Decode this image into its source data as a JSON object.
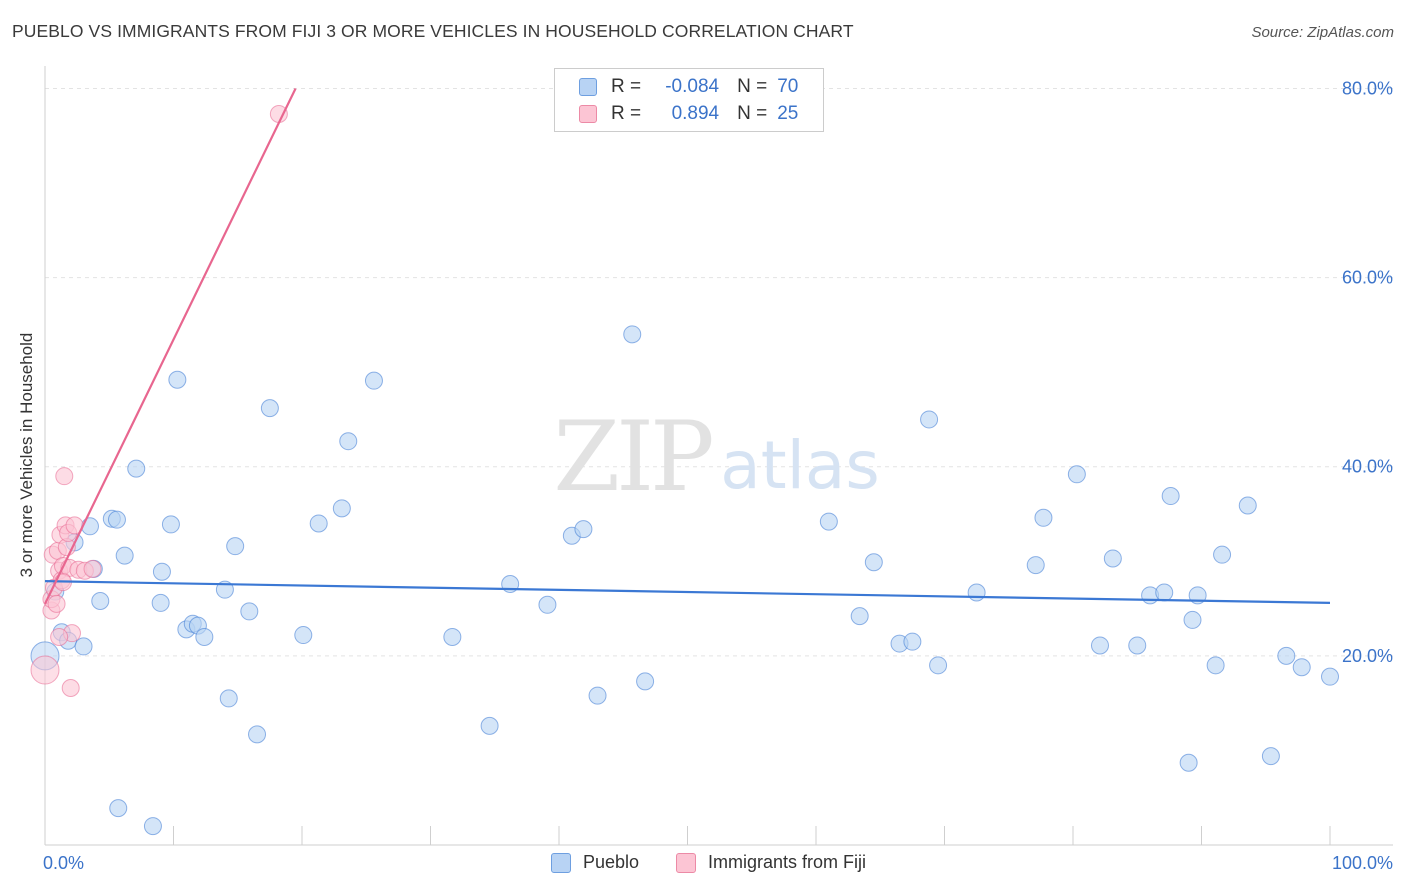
{
  "title": "PUEBLO VS IMMIGRANTS FROM FIJI 3 OR MORE VEHICLES IN HOUSEHOLD CORRELATION CHART",
  "source": "Source: ZipAtlas.com",
  "watermark": {
    "zip": "ZIP",
    "atlas": "atlas"
  },
  "legend": {
    "r_label": "R =",
    "n_label": "N =",
    "rows": [
      {
        "name": "Pueblo",
        "r": "-0.084",
        "n": "70",
        "fill": "#b8d3f4",
        "stroke": "#6e9fe0"
      },
      {
        "name": "Immigrants from Fiji",
        "r": "0.894",
        "n": "25",
        "fill": "#fcc5d4",
        "stroke": "#ec8aa6"
      }
    ]
  },
  "chart_data": {
    "type": "scatter",
    "title": "PUEBLO VS IMMIGRANTS FROM FIJI 3 OR MORE VEHICLES IN HOUSEHOLD CORRELATION CHART",
    "xlabel": "",
    "ylabel": "3 or more Vehicles in Household",
    "xlim": [
      0,
      100
    ],
    "ylim": [
      0,
      81
    ],
    "x_tick_labels": [
      "0.0%",
      "100.0%"
    ],
    "y_ticks": [
      20,
      40,
      60,
      80
    ],
    "y_tick_labels": [
      "20.0%",
      "40.0%",
      "60.0%",
      "80.0%"
    ],
    "grid": true,
    "series": [
      {
        "name": "Pueblo",
        "color": "#3b78d4",
        "fill": "#b8d3f4",
        "trend": {
          "x": [
            0,
            100
          ],
          "y": [
            27.9,
            25.6
          ]
        },
        "points": [
          [
            0.0,
            20.0
          ],
          [
            0.8,
            26.8
          ],
          [
            1.3,
            22.5
          ],
          [
            1.8,
            21.6
          ],
          [
            2.3,
            32.0
          ],
          [
            3.0,
            21.0
          ],
          [
            3.5,
            33.7
          ],
          [
            3.8,
            29.2
          ],
          [
            4.3,
            25.8
          ],
          [
            5.2,
            34.5
          ],
          [
            5.6,
            34.4
          ],
          [
            6.2,
            30.6
          ],
          [
            7.1,
            39.8
          ],
          [
            5.7,
            3.9
          ],
          [
            8.4,
            2.0
          ],
          [
            9.0,
            25.6
          ],
          [
            9.1,
            28.9
          ],
          [
            9.8,
            33.9
          ],
          [
            10.3,
            49.2
          ],
          [
            11.0,
            22.8
          ],
          [
            11.5,
            23.4
          ],
          [
            11.9,
            23.2
          ],
          [
            12.4,
            22.0
          ],
          [
            14.0,
            27.0
          ],
          [
            14.3,
            15.5
          ],
          [
            14.8,
            31.6
          ],
          [
            15.9,
            24.7
          ],
          [
            16.5,
            11.7
          ],
          [
            17.5,
            46.2
          ],
          [
            20.1,
            22.2
          ],
          [
            21.3,
            34.0
          ],
          [
            23.1,
            35.6
          ],
          [
            23.6,
            42.7
          ],
          [
            25.6,
            49.1
          ],
          [
            31.7,
            22.0
          ],
          [
            34.6,
            12.6
          ],
          [
            36.2,
            27.6
          ],
          [
            39.1,
            25.4
          ],
          [
            41.0,
            32.7
          ],
          [
            41.9,
            33.4
          ],
          [
            43.0,
            15.8
          ],
          [
            45.7,
            54.0
          ],
          [
            46.7,
            17.3
          ],
          [
            61.0,
            34.2
          ],
          [
            64.5,
            29.9
          ],
          [
            63.4,
            24.2
          ],
          [
            66.5,
            21.3
          ],
          [
            67.5,
            21.5
          ],
          [
            68.8,
            45.0
          ],
          [
            69.5,
            19.0
          ],
          [
            72.5,
            26.7
          ],
          [
            77.1,
            29.6
          ],
          [
            77.7,
            34.6
          ],
          [
            80.3,
            39.2
          ],
          [
            82.1,
            21.1
          ],
          [
            83.1,
            30.3
          ],
          [
            85.0,
            21.1
          ],
          [
            86.0,
            26.4
          ],
          [
            87.1,
            26.7
          ],
          [
            87.6,
            36.9
          ],
          [
            89.0,
            8.7
          ],
          [
            89.3,
            23.8
          ],
          [
            89.7,
            26.4
          ],
          [
            91.1,
            19.0
          ],
          [
            91.6,
            30.7
          ],
          [
            93.6,
            35.9
          ],
          [
            95.4,
            9.4
          ],
          [
            96.6,
            20.0
          ],
          [
            97.8,
            18.8
          ],
          [
            100.0,
            17.8
          ]
        ]
      },
      {
        "name": "Immigrants from Fiji",
        "color": "#e8668f",
        "fill": "#fcc5d4",
        "trend": {
          "x": [
            0,
            19.5
          ],
          "y": [
            25.5,
            80.0
          ]
        },
        "points": [
          [
            0.0,
            18.5
          ],
          [
            0.5,
            24.8
          ],
          [
            0.5,
            26.0
          ],
          [
            0.7,
            27.2
          ],
          [
            0.6,
            30.7
          ],
          [
            1.0,
            31.1
          ],
          [
            1.1,
            29.0
          ],
          [
            1.2,
            32.8
          ],
          [
            1.3,
            28.0
          ],
          [
            1.4,
            29.5
          ],
          [
            1.5,
            39.0
          ],
          [
            1.6,
            33.8
          ],
          [
            1.7,
            31.5
          ],
          [
            1.8,
            33.0
          ],
          [
            1.9,
            29.3
          ],
          [
            2.0,
            16.6
          ],
          [
            2.1,
            22.4
          ],
          [
            2.3,
            33.8
          ],
          [
            2.6,
            29.1
          ],
          [
            3.1,
            29.0
          ],
          [
            3.7,
            29.2
          ],
          [
            1.1,
            22.0
          ],
          [
            0.9,
            25.5
          ],
          [
            1.4,
            27.8
          ],
          [
            18.2,
            77.3
          ]
        ]
      }
    ]
  }
}
